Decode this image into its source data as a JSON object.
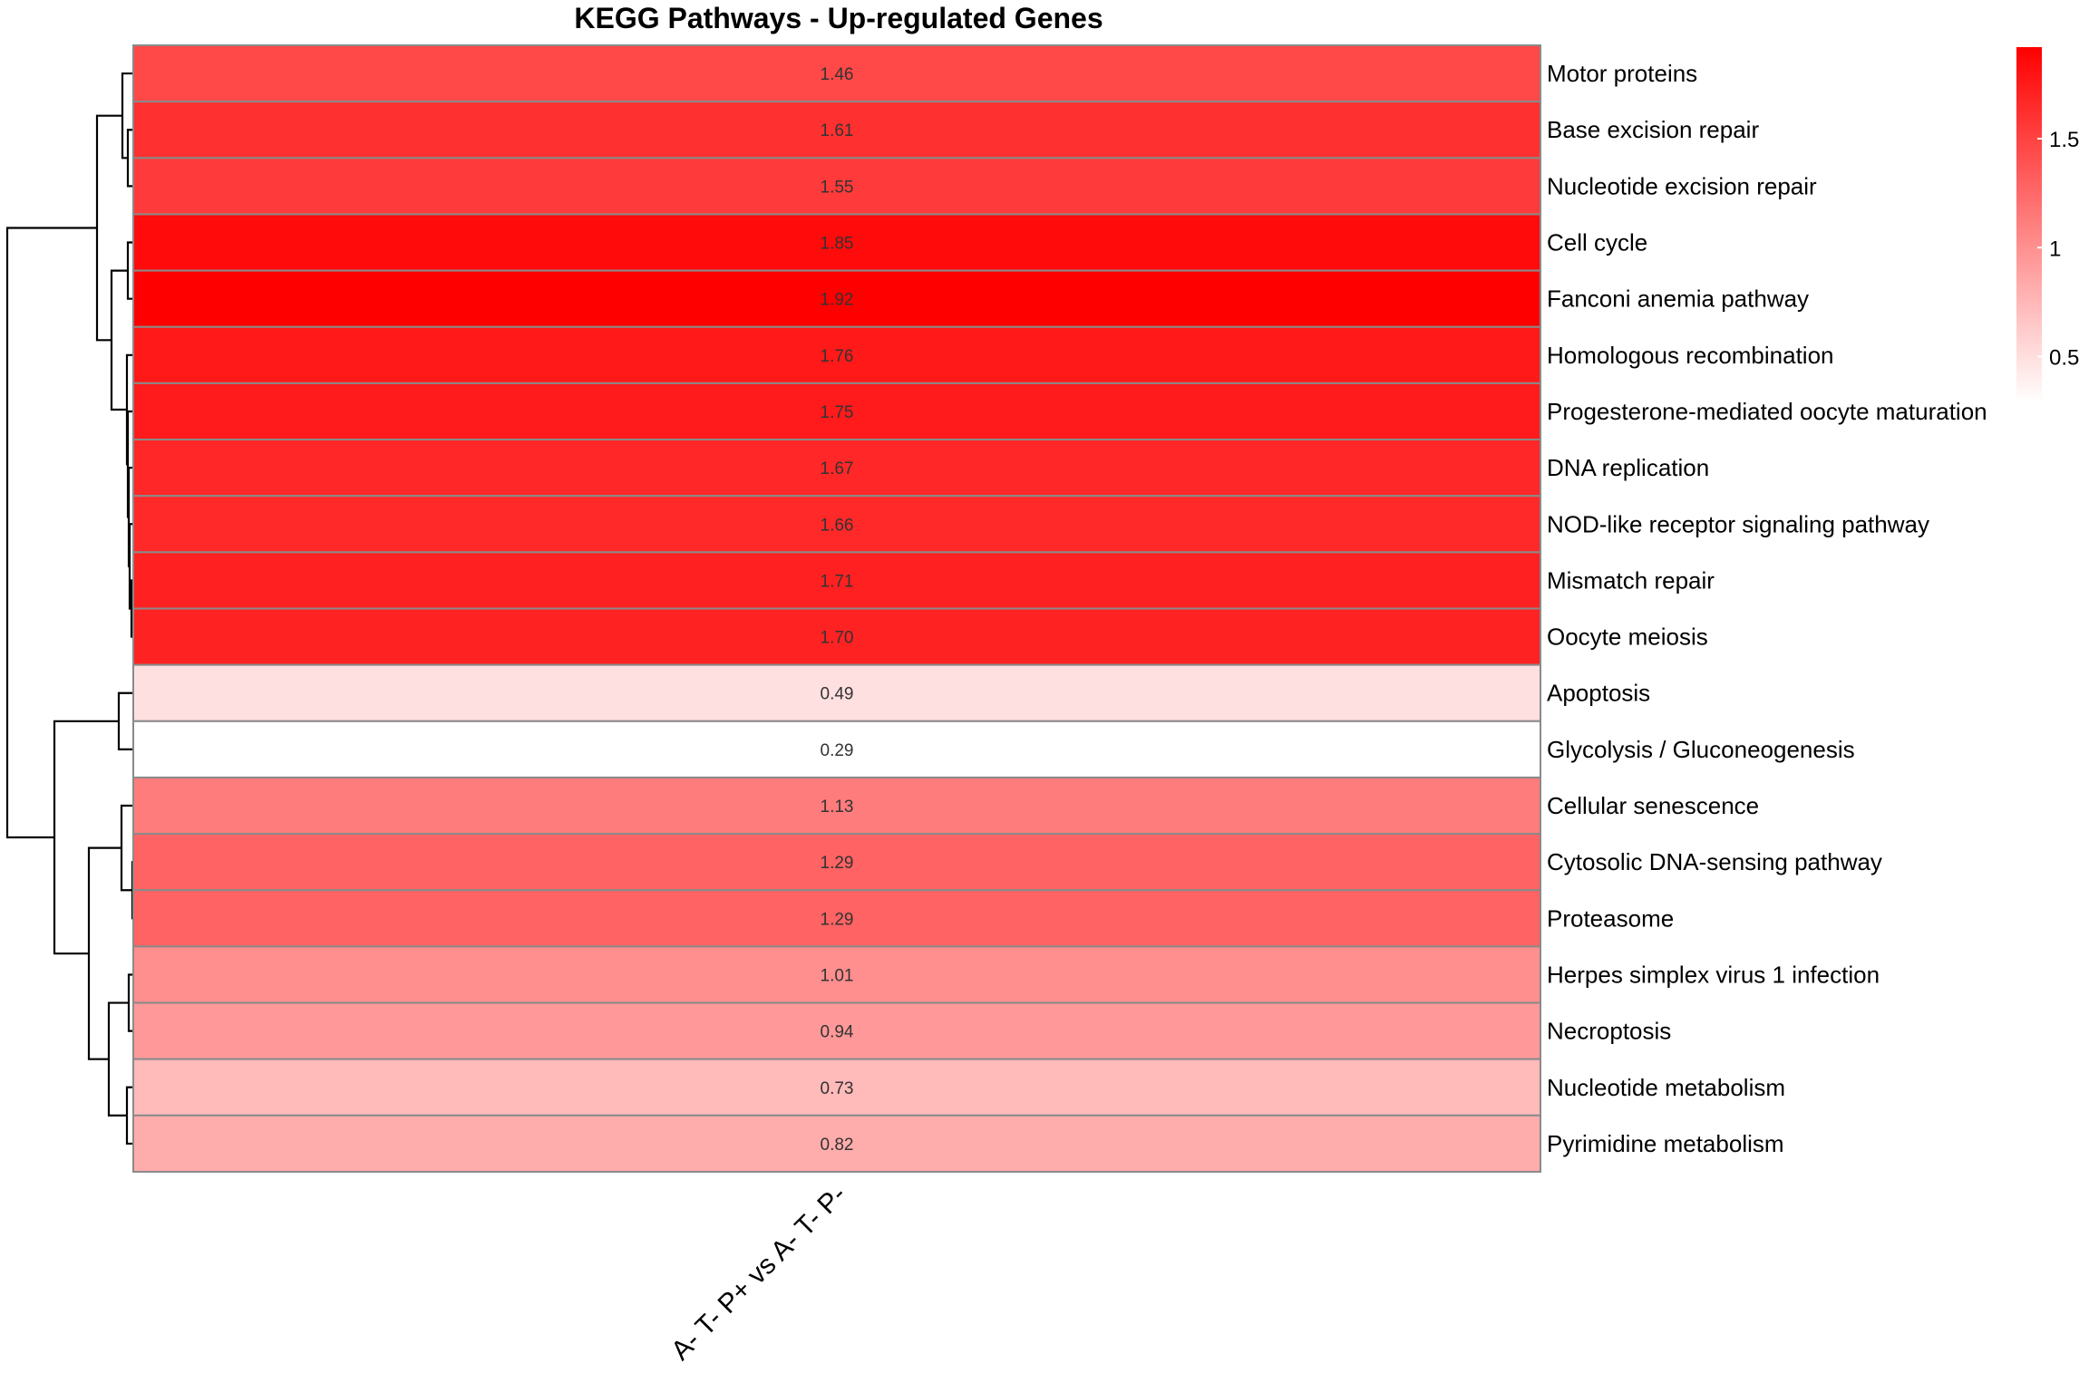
{
  "chart_data": {
    "type": "heatmap",
    "title": "KEGG Pathways - Up-regulated Genes",
    "columns": [
      "A- T- P+ vs A- T- P-"
    ],
    "rows": [
      "Motor proteins",
      "Base excision repair",
      "Nucleotide excision repair",
      "Cell cycle",
      "Fanconi anemia pathway",
      "Homologous recombination",
      "Progesterone-mediated oocyte maturation",
      "DNA replication",
      "NOD-like receptor signaling pathway",
      "Mismatch repair",
      "Oocyte meiosis",
      "Apoptosis",
      "Glycolysis / Gluconeogenesis",
      "Cellular senescence",
      "Cytosolic DNA-sensing pathway",
      "Proteasome",
      "Herpes simplex virus 1 infection",
      "Necroptosis",
      "Nucleotide metabolism",
      "Pyrimidine metabolism"
    ],
    "values": [
      1.46,
      1.61,
      1.55,
      1.85,
      1.92,
      1.76,
      1.75,
      1.67,
      1.66,
      1.71,
      1.7,
      0.49,
      0.29,
      1.13,
      1.29,
      1.29,
      1.01,
      0.94,
      0.73,
      0.82
    ],
    "value_labels": [
      "1.46",
      "1.61",
      "1.55",
      "1.85",
      "1.92",
      "1.76",
      "1.75",
      "1.67",
      "1.66",
      "1.71",
      "1.70",
      "0.49",
      "0.29",
      "1.13",
      "1.29",
      "1.29",
      "1.01",
      "0.94",
      "0.73",
      "0.82"
    ],
    "color_scale": {
      "low": "#ffffff",
      "high": "#ff0000",
      "min": 0.29,
      "max": 1.92
    },
    "colorbar_ticks": [
      {
        "value": 0.5,
        "label": "0.5"
      },
      {
        "value": 1.0,
        "label": "1"
      },
      {
        "value": 1.5,
        "label": "1.5"
      }
    ],
    "row_dendrogram": true,
    "legend": "right"
  }
}
